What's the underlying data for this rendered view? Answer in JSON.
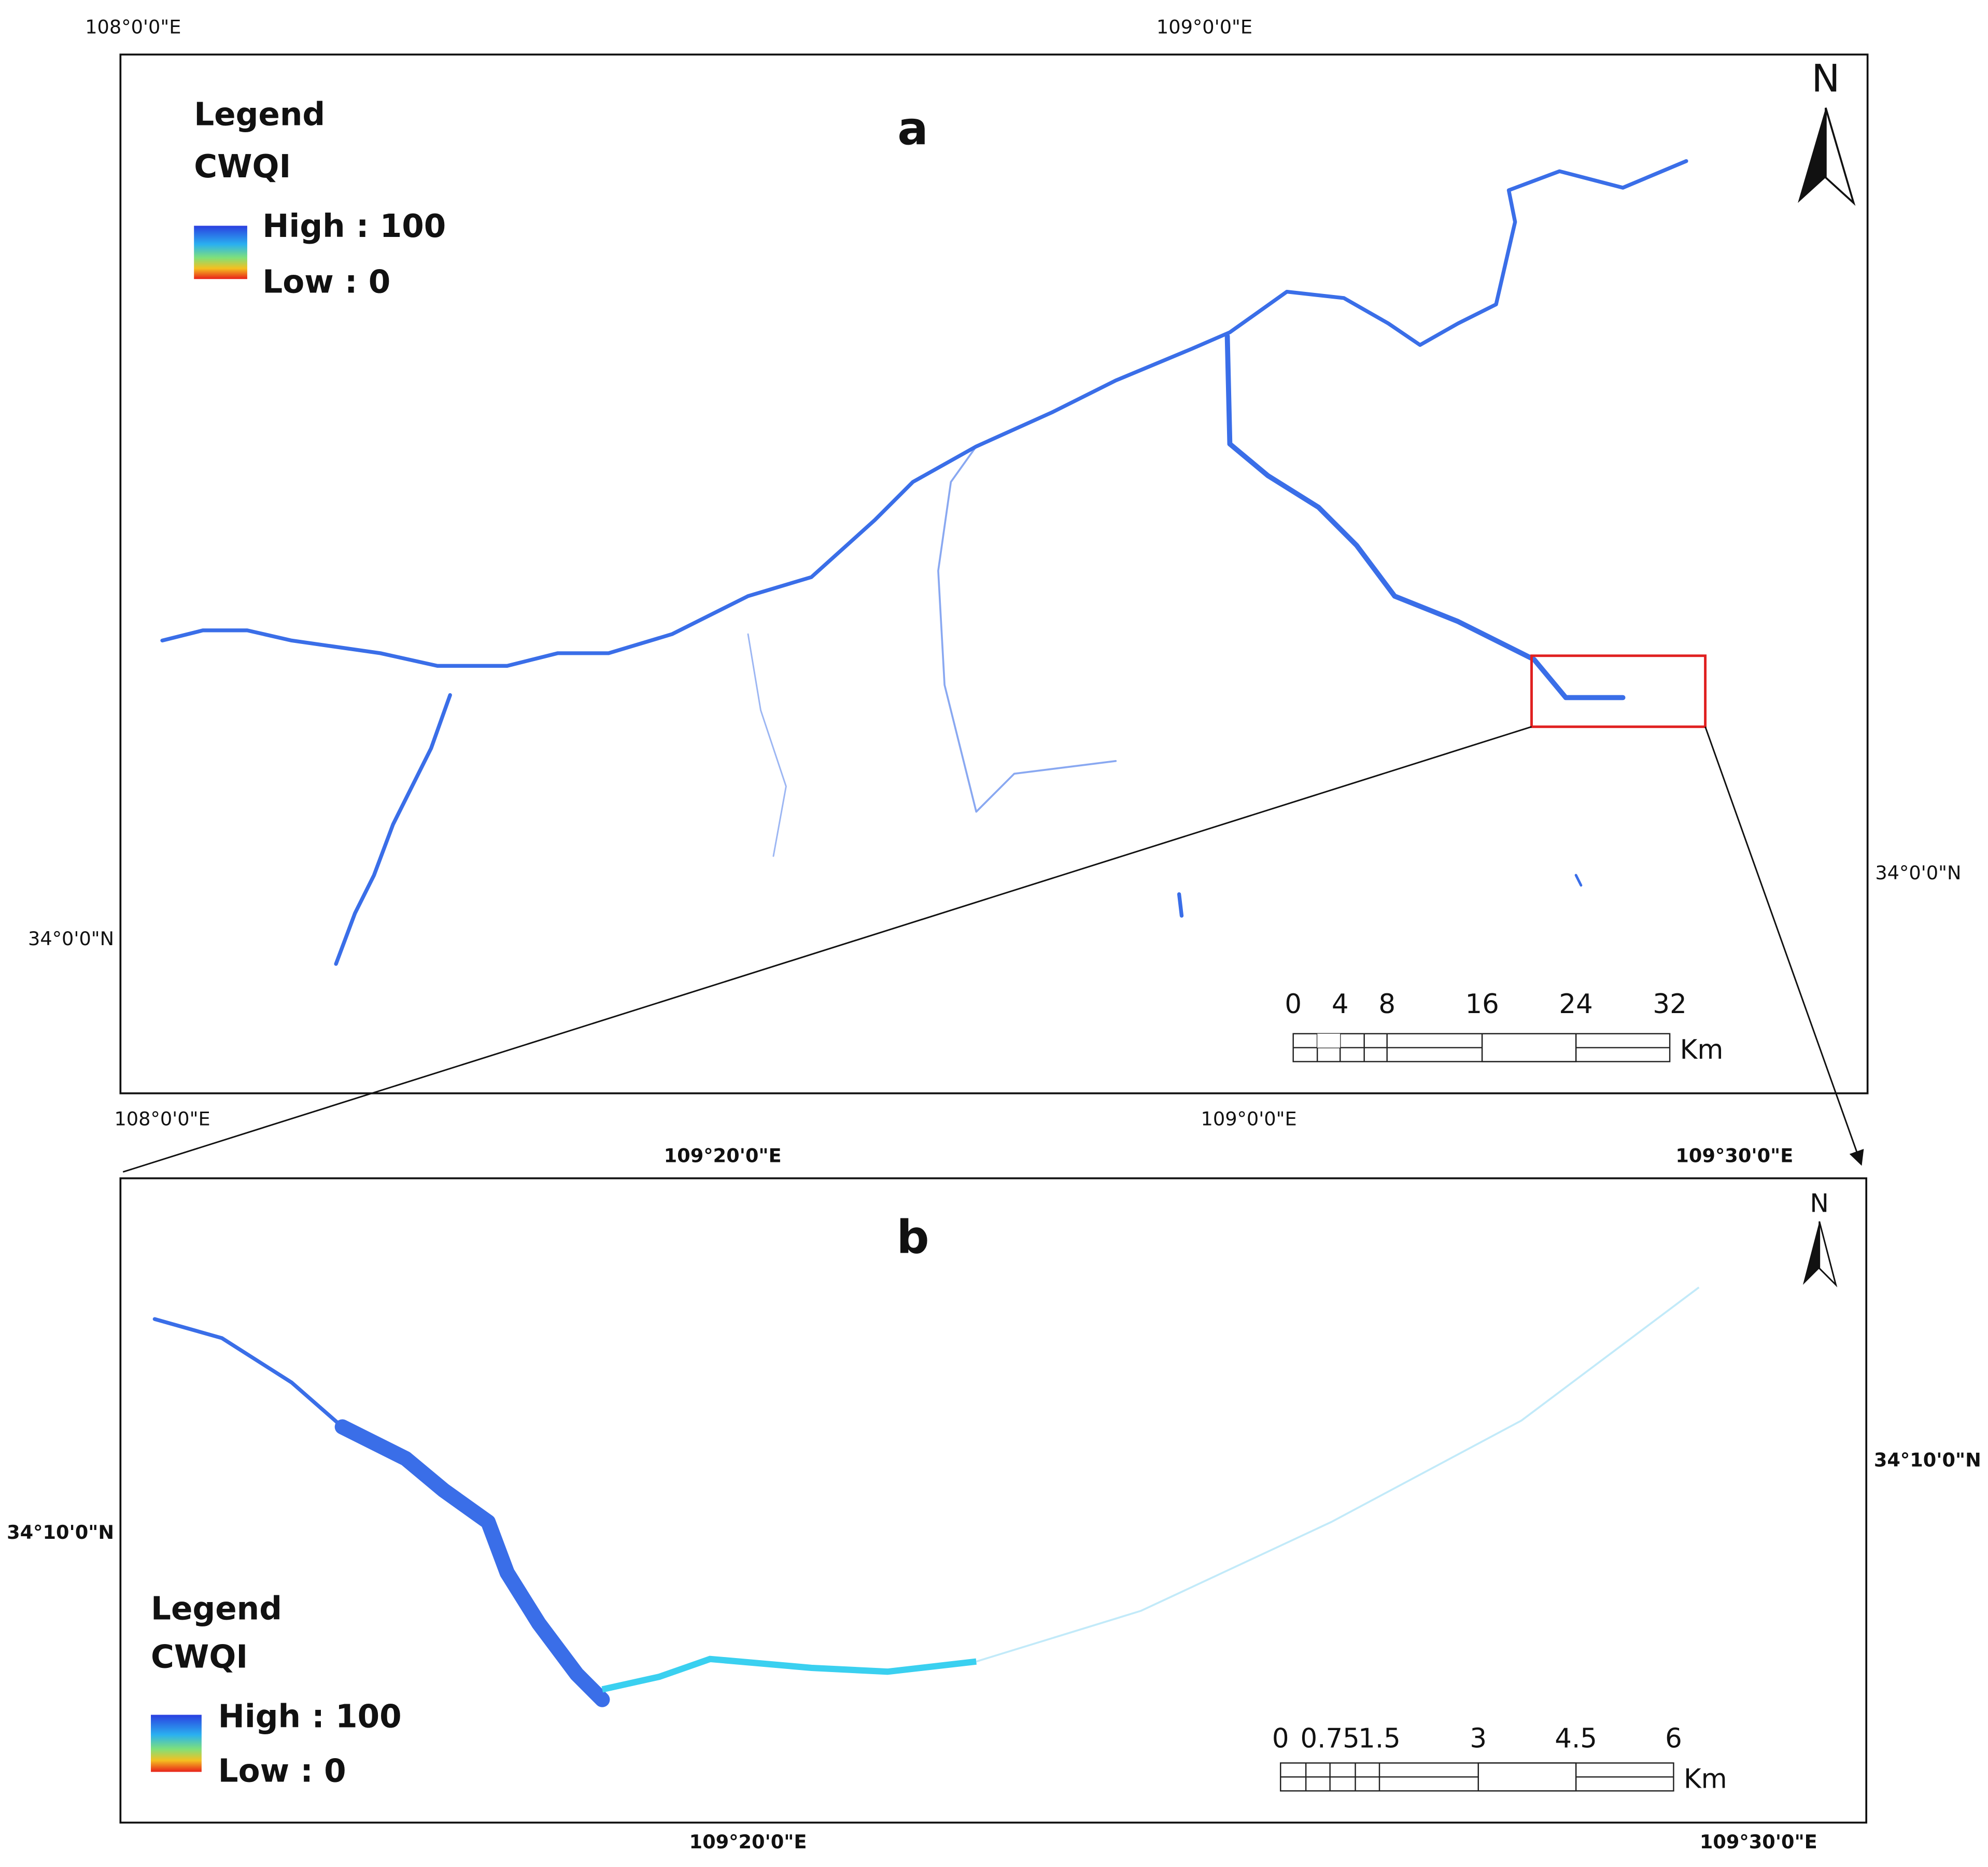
{
  "panel_a": {
    "label": "a",
    "legend_title": "Legend",
    "legend_field": "CWQI",
    "legend_high": "High : 100",
    "legend_low": "Low : 0",
    "north": "N",
    "top_lon_labels": [
      "108°0'0\"E",
      "109°0'0\"E"
    ],
    "bottom_lon_labels": [
      "108°0'0\"E",
      "109°0'0\"E"
    ],
    "left_lat_label": "34°0'0\"N",
    "right_lat_label": "34°0'0\"N",
    "scale_labels": [
      "0",
      "4",
      "8",
      "16",
      "24",
      "32"
    ],
    "scale_unit": "Km"
  },
  "panel_b": {
    "label": "b",
    "legend_title": "Legend",
    "legend_field": "CWQI",
    "legend_high": "High : 100",
    "legend_low": "Low : 0",
    "north": "N",
    "top_lon_labels": [
      "109°20'0\"E",
      "109°30'0\"E"
    ],
    "bottom_lon_labels": [
      "109°20'0\"E",
      "109°30'0\"E"
    ],
    "left_lat_label": "34°10'0\"N",
    "right_lat_label": "34°10'0\"N",
    "scale_labels": [
      "0",
      "0.75",
      "1.5",
      "3",
      "4.5",
      "6"
    ],
    "scale_unit": "Km"
  }
}
